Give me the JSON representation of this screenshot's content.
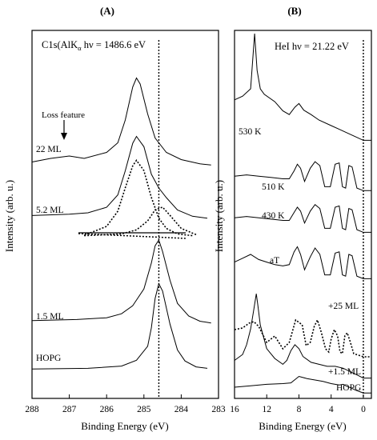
{
  "figure": {
    "y_axis_label": "Intensity (arb. u.)",
    "x_axis_label": "Binding Energy (eV)"
  },
  "chart_data": [
    {
      "panel": "(A)",
      "type": "line",
      "title": "C1s(AlK",
      "title_sub": "α",
      "title_rest": " hν = 1486.6 eV",
      "xlabel": "Binding Energy (eV)",
      "ylabel": "Intensity (arb. u.)",
      "xlim": [
        288,
        283
      ],
      "x_reversed": true,
      "xticks": [
        "288",
        "287",
        "286",
        "285",
        "284",
        "283"
      ],
      "reference_line_x": 284.6,
      "annotation": "Loss feature",
      "series": [
        {
          "name": "22 ML",
          "peak": 285.2,
          "x": [
            288,
            287.5,
            287.0,
            286.6,
            286.0,
            285.7,
            285.5,
            285.3,
            285.2,
            285.1,
            284.9,
            284.7,
            284.4,
            284.0,
            283.5,
            283.2
          ],
          "y": [
            1.0,
            1.6,
            2.0,
            1.6,
            2.6,
            4.2,
            8.0,
            13.5,
            15.0,
            14.0,
            9.0,
            5.0,
            2.6,
            1.4,
            0.7,
            0.5
          ]
        },
        {
          "name": "5.2 ML",
          "peak": 285.2,
          "x": [
            288,
            287.0,
            286.5,
            286.0,
            285.7,
            285.5,
            285.3,
            285.2,
            285.0,
            284.8,
            284.6,
            284.4,
            284.1,
            283.7,
            283.3
          ],
          "y": [
            1.0,
            1.2,
            1.4,
            2.2,
            4.0,
            7.5,
            11.5,
            12.5,
            11.0,
            7.0,
            5.0,
            3.6,
            1.8,
            0.9,
            0.6
          ]
        },
        {
          "name": "5.2 ML component 1",
          "dashed": true,
          "x": [
            286.6,
            286.0,
            285.7,
            285.5,
            285.3,
            285.2,
            285.0,
            284.8,
            284.6,
            284.4,
            284.1,
            283.7
          ],
          "y": [
            0.1,
            1.4,
            3.6,
            7.0,
            10.2,
            11.0,
            9.5,
            5.6,
            2.6,
            1.1,
            0.3,
            0.05
          ]
        },
        {
          "name": "5.2 ML component 2",
          "dashed": true,
          "x": [
            286.6,
            285.6,
            285.2,
            284.9,
            284.7,
            284.5,
            284.3,
            284.0,
            283.6
          ],
          "y": [
            0.05,
            0.3,
            0.9,
            2.2,
            3.8,
            4.2,
            3.0,
            1.1,
            0.2
          ]
        },
        {
          "name": "1.5 ML",
          "peak": 284.6,
          "x": [
            288,
            286.8,
            286.0,
            285.6,
            285.3,
            285.0,
            284.8,
            284.7,
            284.6,
            284.5,
            284.3,
            284.1,
            283.8,
            283.5,
            283.2
          ],
          "y": [
            1.0,
            1.2,
            1.5,
            2.2,
            3.6,
            6.5,
            11.0,
            14.0,
            15.0,
            13.0,
            8.0,
            4.0,
            1.8,
            0.9,
            0.6
          ]
        },
        {
          "name": "HOPG",
          "peak": 284.6,
          "x": [
            288,
            286.5,
            285.6,
            285.2,
            284.9,
            284.8,
            284.7,
            284.6,
            284.5,
            284.3,
            284.1,
            283.9,
            283.6,
            283.3
          ],
          "y": [
            0.4,
            0.5,
            0.8,
            1.6,
            3.5,
            6.0,
            10.0,
            12.0,
            11.0,
            6.5,
            3.0,
            1.5,
            0.7,
            0.5
          ]
        }
      ]
    },
    {
      "panel": "(B)",
      "type": "line",
      "title": "HeI  hν = 21.22 eV",
      "xlabel": "Binding Energy (eV)",
      "ylabel": "",
      "xlim": [
        16,
        -1
      ],
      "x_reversed": true,
      "xticks": [
        "16",
        "12",
        "8",
        "4",
        "0"
      ],
      "reference_line_x": 0,
      "series": [
        {
          "name": "530 K",
          "x": [
            16,
            15,
            14,
            13.5,
            13.2,
            12.8,
            12.3,
            11,
            10,
            9.2,
            8.5,
            8.0,
            7.4,
            6.5,
            5.5,
            4,
            3,
            2,
            1,
            0,
            -1
          ],
          "y": [
            12,
            13,
            15,
            30,
            20,
            15,
            13.5,
            11.5,
            9,
            8,
            10,
            11,
            9.2,
            8,
            6.5,
            5,
            4,
            3,
            2,
            1,
            1
          ]
        },
        {
          "name": "510 K",
          "x": [
            16,
            14.5,
            13,
            11.5,
            10,
            9.2,
            8.6,
            8.2,
            7.8,
            7.3,
            6.6,
            6.0,
            5.4,
            4.8,
            4.1,
            3.5,
            3.0,
            2.6,
            2.2,
            1.8,
            1.4,
            0.8,
            0,
            -1
          ],
          "y": [
            6,
            6.5,
            6,
            5.5,
            5,
            5,
            8,
            10.5,
            9,
            4,
            9,
            11.5,
            10,
            2,
            2,
            10.5,
            11,
            2,
            1.5,
            10,
            9.5,
            1.5,
            0.5,
            0.5
          ]
        },
        {
          "name": "430 K",
          "x": [
            16,
            14.5,
            13,
            11.5,
            10,
            9.2,
            8.6,
            8.2,
            7.8,
            7.3,
            6.6,
            6.0,
            5.4,
            4.8,
            4.1,
            3.5,
            3.0,
            2.6,
            2.2,
            1.8,
            1.4,
            0.8,
            0,
            -1
          ],
          "y": [
            6,
            6.5,
            6,
            5.5,
            5,
            5,
            8,
            10,
            8.5,
            4,
            8.5,
            11,
            9.5,
            2,
            2,
            10,
            10.5,
            2,
            1.5,
            9.5,
            9,
            1.5,
            0.5,
            0.5
          ]
        },
        {
          "name": "aT",
          "x": [
            16,
            15,
            14,
            13,
            12,
            11,
            10,
            9.2,
            8.6,
            8.2,
            7.8,
            7.3,
            6.6,
            6.0,
            5.4,
            4.8,
            4.1,
            3.5,
            3.0,
            2.6,
            2.2,
            1.8,
            1.4,
            0.8,
            0,
            -1
          ],
          "y": [
            7,
            8.5,
            10,
            8,
            7,
            6,
            5.5,
            6,
            11,
            13,
            10,
            4,
            9,
            12.5,
            10,
            2,
            2,
            10.5,
            11,
            2,
            1.5,
            10,
            9.5,
            1.5,
            0.5,
            0.5
          ]
        },
        {
          "name": "+25 ML",
          "dashed": true,
          "x": [
            16,
            15,
            14.2,
            13.6,
            13.0,
            12.0,
            11.0,
            10.0,
            9.2,
            8.4,
            7.6,
            7.1,
            6.6,
            6.1,
            5.7,
            5.2,
            4.7,
            4.3,
            4.0,
            3.6,
            3.2,
            2.9,
            2.6,
            2.3,
            2.0,
            1.6,
            1.2,
            0.6,
            0,
            -1
          ],
          "y": [
            9,
            9.5,
            11,
            11.5,
            10,
            5,
            7,
            3,
            5,
            12,
            10.5,
            4,
            5,
            10,
            12,
            8,
            3,
            2,
            6,
            9,
            7,
            2,
            1.5,
            7,
            8,
            5,
            1.5,
            1,
            0.5,
            0.5
          ]
        },
        {
          "name": "+1.5 ML",
          "x": [
            16,
            15,
            14.5,
            14.0,
            13.6,
            13.3,
            13.1,
            12.8,
            12.0,
            11.0,
            10.0,
            9.5,
            9.0,
            8.5,
            8.0,
            7.5,
            6.5,
            5.5,
            4.5,
            3.5,
            2.5,
            1.5,
            0.5,
            0,
            -1
          ],
          "y": [
            5,
            6.5,
            9,
            13,
            18,
            22,
            19,
            14,
            8,
            5.5,
            4,
            5,
            7.5,
            9,
            8,
            6,
            4.5,
            4,
            3.5,
            3.5,
            3,
            2,
            1,
            0.5,
            0.5
          ]
        },
        {
          "name": "HOPG",
          "x": [
            16,
            14,
            12,
            10,
            9.0,
            8.0,
            7.0,
            6.0,
            5.0,
            4.0,
            3.0,
            2.5,
            2.0,
            1.5,
            1.0,
            0.5,
            0,
            -1
          ],
          "y": [
            1,
            1.2,
            1.4,
            1.5,
            1.6,
            2.5,
            2.2,
            2.0,
            1.8,
            1.5,
            1.3,
            1.4,
            1.1,
            0.9,
            0.6,
            0.4,
            0.2,
            0.2
          ]
        }
      ],
      "labels": [
        "530 K",
        "510 K",
        "430 K",
        "aT",
        "+25 ML",
        "+1.5 ML",
        "HOPG"
      ]
    }
  ]
}
